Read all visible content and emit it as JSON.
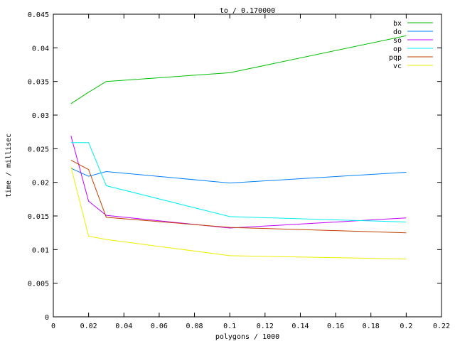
{
  "chart_data": {
    "type": "line",
    "title": "to / 0.170000",
    "xlabel": "polygons / 1000",
    "ylabel": "time / millisec",
    "xlim": [
      0,
      0.22
    ],
    "ylim": [
      0,
      0.045
    ],
    "xticks": [
      0,
      0.02,
      0.04,
      0.06,
      0.08,
      0.1,
      0.12,
      0.14,
      0.16,
      0.18,
      0.2,
      0.22
    ],
    "xtick_labels": [
      "0",
      "0.02",
      "0.04",
      "0.06",
      "0.08",
      "0.1",
      "0.12",
      "0.14",
      "0.16",
      "0.18",
      "0.2",
      "0.22"
    ],
    "yticks": [
      0,
      0.005,
      0.01,
      0.015,
      0.02,
      0.025,
      0.03,
      0.035,
      0.04,
      0.045
    ],
    "ytick_labels": [
      "0",
      "0.005",
      "0.01",
      "0.015",
      "0.02",
      "0.025",
      "0.03",
      "0.035",
      "0.04",
      "0.045"
    ],
    "grid": false,
    "legend_position": "top-right",
    "x": [
      0.01,
      0.02,
      0.03,
      0.1,
      0.2
    ],
    "series": [
      {
        "name": "bx",
        "color": "#00c000",
        "values": [
          0.0317,
          0.0334,
          0.035,
          0.0363,
          0.0418
        ]
      },
      {
        "name": "do",
        "color": "#0080ff",
        "values": [
          0.0221,
          0.0209,
          0.0216,
          0.0199,
          0.0215
        ]
      },
      {
        "name": "so",
        "color": "#c000ff",
        "values": [
          0.0269,
          0.0172,
          0.0151,
          0.0132,
          0.0147
        ]
      },
      {
        "name": "op",
        "color": "#00eeee",
        "values": [
          0.0259,
          0.0259,
          0.0195,
          0.0149,
          0.0141
        ]
      },
      {
        "name": "pqp",
        "color": "#c04000",
        "values": [
          0.0233,
          0.0219,
          0.0148,
          0.0133,
          0.0125
        ]
      },
      {
        "name": "vc",
        "color": "#eeee00",
        "values": [
          0.0223,
          0.012,
          0.0115,
          0.0091,
          0.0086
        ]
      }
    ]
  }
}
